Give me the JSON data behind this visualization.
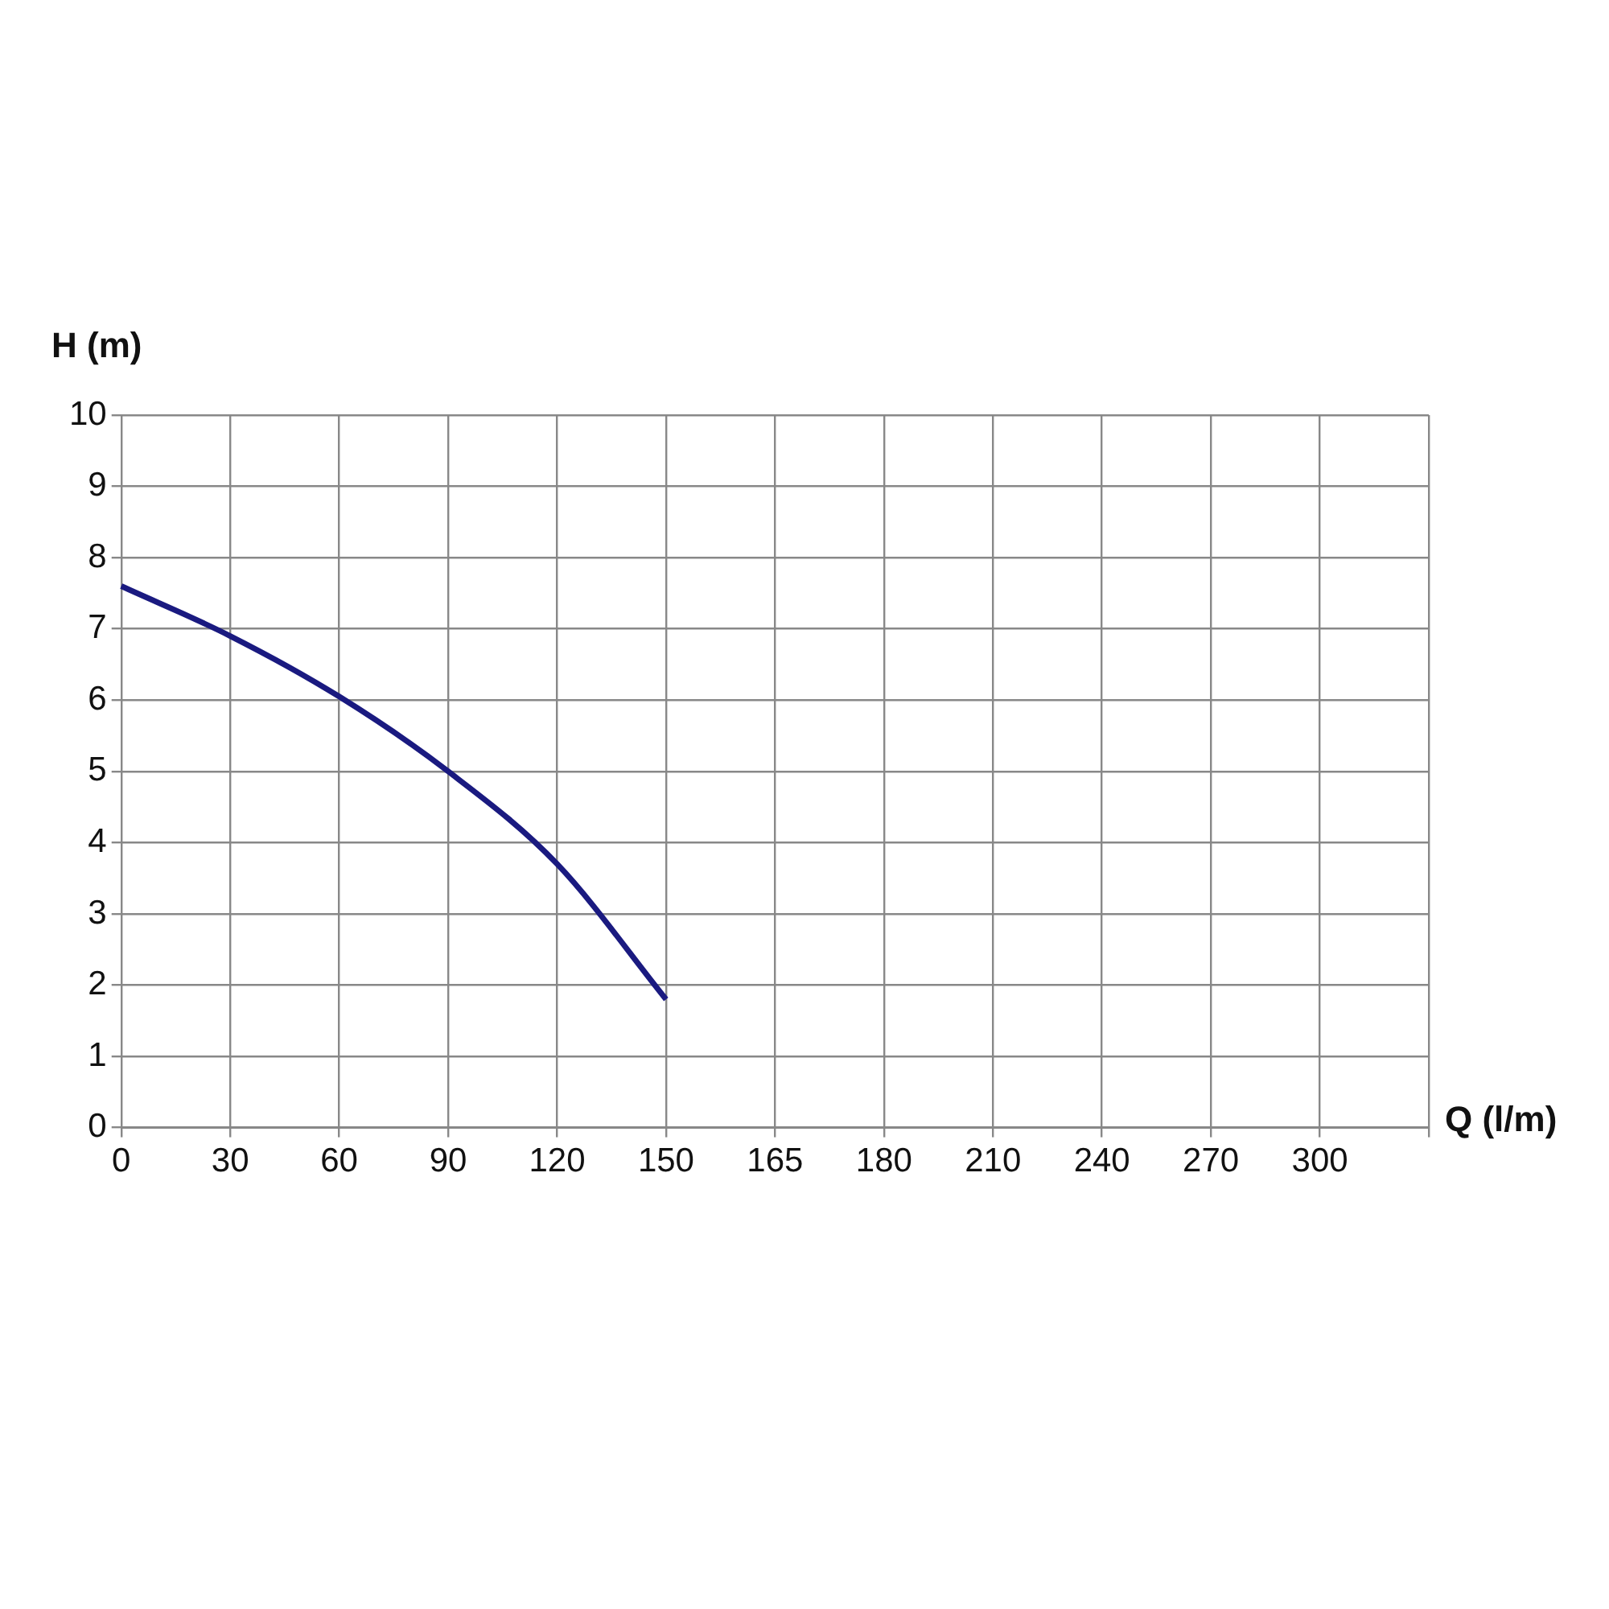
{
  "chart_data": {
    "type": "line",
    "xlabel": "Q (l/m)",
    "ylabel": "H (m)",
    "categories": [
      "0",
      "30",
      "60",
      "90",
      "120",
      "150",
      "165",
      "180",
      "210",
      "240",
      "270",
      "300",
      null
    ],
    "series": [
      {
        "color": "#1a1a80",
        "values": [
          7.6,
          6.9,
          6.05,
          5.0,
          3.7,
          1.8,
          null,
          null,
          null,
          null,
          null,
          null,
          null
        ]
      }
    ],
    "ylim": [
      0,
      10
    ],
    "yticks": [
      0,
      1,
      2,
      3,
      4,
      5,
      6,
      7,
      8,
      9,
      10
    ],
    "grid": true,
    "legend": false,
    "marker": "none",
    "line_style": "solid"
  }
}
